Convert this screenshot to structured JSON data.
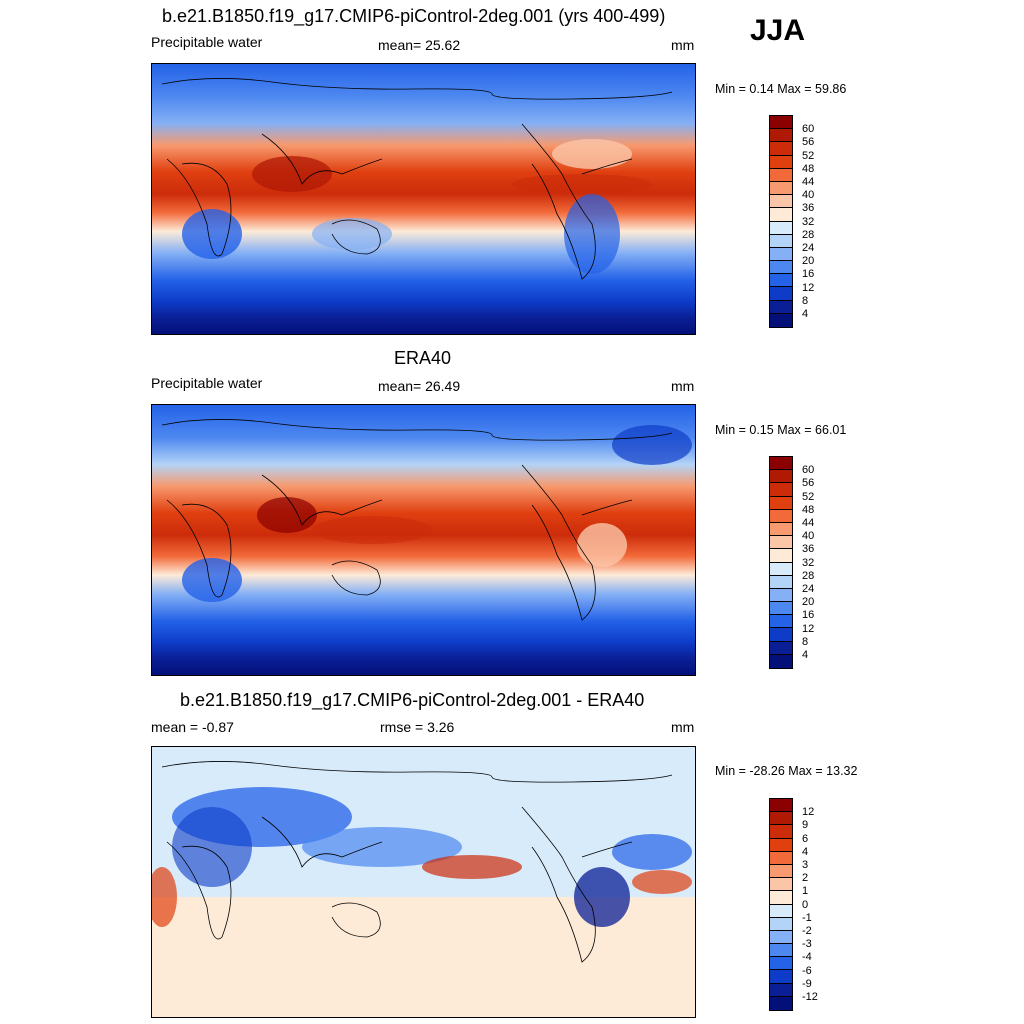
{
  "season": "JJA",
  "panels": [
    {
      "title": "b.e21.B1850.f19_g17.CMIP6-piControl-2deg.001 (yrs 400-499)",
      "left_label": "Precipitable water",
      "center_label": "mean=  25.62",
      "units": "mm",
      "minmax": "Min =   0.14 Max =  59.86",
      "colorbar_labels": [
        "60",
        "56",
        "52",
        "48",
        "44",
        "40",
        "36",
        "32",
        "28",
        "24",
        "20",
        "16",
        "12",
        "8",
        "4"
      ]
    },
    {
      "title": "ERA40",
      "left_label": "Precipitable water",
      "center_label": "mean=  26.49",
      "units": "mm",
      "minmax": "Min =   0.15 Max =  66.01",
      "colorbar_labels": [
        "60",
        "56",
        "52",
        "48",
        "44",
        "40",
        "36",
        "32",
        "28",
        "24",
        "20",
        "16",
        "12",
        "8",
        "4"
      ]
    },
    {
      "title": "b.e21.B1850.f19_g17.CMIP6-piControl-2deg.001 - ERA40",
      "left_label": "mean =  -0.87",
      "center_label": "rmse =   3.26",
      "units": "mm",
      "minmax": "Min = -28.26 Max =  13.32",
      "colorbar_labels": [
        "12",
        "9",
        "6",
        "4",
        "3",
        "2",
        "1",
        "0",
        "-1",
        "-2",
        "-3",
        "-4",
        "-6",
        "-9",
        "-12"
      ]
    }
  ],
  "colors": {
    "abs_scale": [
      "#8b0000",
      "#b01a05",
      "#cc2c0a",
      "#e04010",
      "#f26a3a",
      "#f79a6f",
      "#fbc6a8",
      "#fdebd8",
      "#d8ebfb",
      "#b3d3f7",
      "#85b0f5",
      "#4d88f0",
      "#2462e8",
      "#0e3cc8",
      "#0a1f96",
      "#04107a"
    ],
    "diff_scale": [
      "#8b0000",
      "#b01a05",
      "#cc2c0a",
      "#e04010",
      "#f26a3a",
      "#f79a6f",
      "#fbc6a8",
      "#fdebd8",
      "#d8ebfb",
      "#b3d3f7",
      "#85b0f5",
      "#4d88f0",
      "#2462e8",
      "#0e3cc8",
      "#0a1f96",
      "#04107a"
    ]
  }
}
